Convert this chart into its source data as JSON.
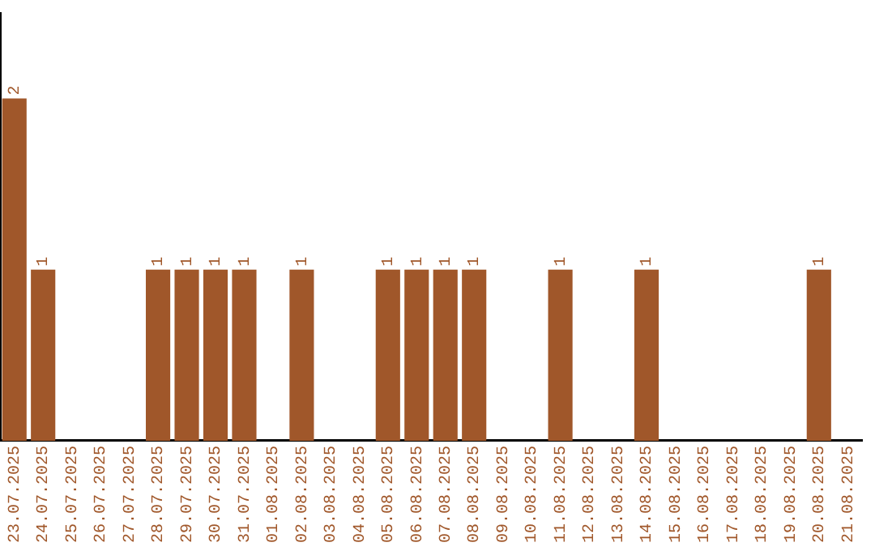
{
  "chart_data": {
    "type": "bar",
    "categories": [
      "23.07.2025",
      "24.07.2025",
      "25.07.2025",
      "26.07.2025",
      "27.07.2025",
      "28.07.2025",
      "29.07.2025",
      "30.07.2025",
      "31.07.2025",
      "01.08.2025",
      "02.08.2025",
      "03.08.2025",
      "04.08.2025",
      "05.08.2025",
      "06.08.2025",
      "07.08.2025",
      "08.08.2025",
      "09.08.2025",
      "10.08.2025",
      "11.08.2025",
      "12.08.2025",
      "13.08.2025",
      "14.08.2025",
      "15.08.2025",
      "16.08.2025",
      "17.08.2025",
      "18.08.2025",
      "19.08.2025",
      "20.08.2025",
      "21.08.2025"
    ],
    "values": [
      2,
      1,
      0,
      0,
      0,
      1,
      1,
      1,
      1,
      0,
      1,
      0,
      0,
      1,
      1,
      1,
      1,
      0,
      0,
      1,
      0,
      0,
      1,
      0,
      0,
      0,
      0,
      0,
      1,
      0
    ],
    "value_labels": [
      "2",
      "1",
      null,
      null,
      null,
      "1",
      "1",
      "1",
      "1",
      null,
      "1",
      null,
      null,
      "1",
      "1",
      "1",
      "1",
      null,
      null,
      "1",
      null,
      null,
      "1",
      null,
      null,
      null,
      null,
      null,
      "1",
      null
    ],
    "color": "#a0572a",
    "tick_labels": "x",
    "grid": false,
    "legend": false
  }
}
